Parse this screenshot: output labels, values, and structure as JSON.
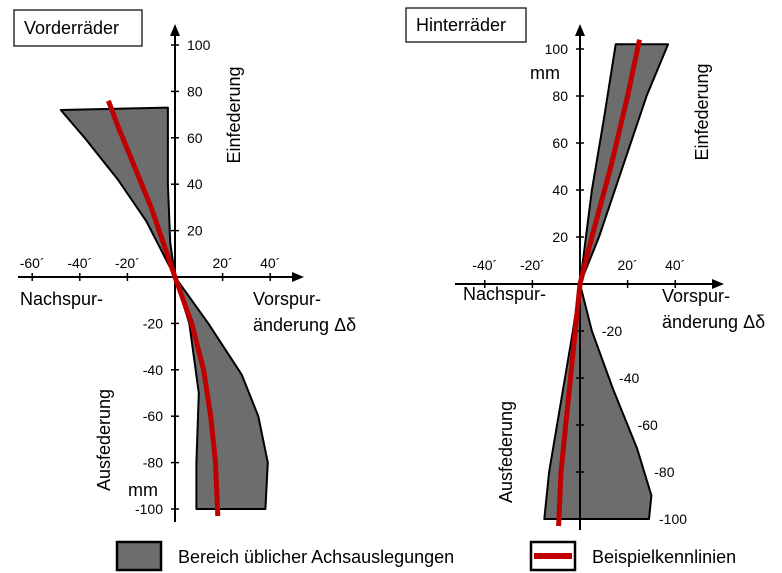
{
  "chart_data": [
    {
      "type": "area",
      "title": "Vorderräder",
      "x_axis": {
        "label_left": "Nachspur-",
        "label_right_line1": "Vorspur-",
        "label_right_line2": "änderung Δδ",
        "ticks": [
          "-60´",
          "-40´",
          "-20´",
          "20´",
          "40´"
        ],
        "tick_values": [
          -60,
          -40,
          -20,
          20,
          40
        ]
      },
      "y_axis": {
        "label_top": "Einfederung",
        "label_bottom": "Ausfederung",
        "unit": "mm",
        "ticks": [
          "100",
          "80",
          "60",
          "40",
          "20",
          "-20",
          "-40",
          "-60",
          "-80",
          "-100"
        ],
        "tick_values": [
          100,
          80,
          60,
          40,
          20,
          -20,
          -40,
          -60,
          -80,
          -100
        ]
      },
      "band": {
        "name": "Bereich üblicher Achsauslegungen",
        "left_edge": [
          [
            -48,
            72
          ],
          [
            -38,
            60
          ],
          [
            -24,
            42
          ],
          [
            -12,
            24
          ],
          [
            0,
            0
          ],
          [
            6,
            -20
          ],
          [
            10,
            -50
          ],
          [
            9,
            -80
          ],
          [
            9,
            -100
          ]
        ],
        "right_edge": [
          [
            -3,
            73
          ],
          [
            -3,
            40
          ],
          [
            -2,
            15
          ],
          [
            0,
            0
          ],
          [
            14,
            -20
          ],
          [
            28,
            -42
          ],
          [
            35,
            -60
          ],
          [
            39,
            -80
          ],
          [
            38,
            -100
          ]
        ]
      },
      "series": [
        {
          "name": "Beispielkennlinien",
          "points": [
            [
              -28,
              76
            ],
            [
              -24,
              65
            ],
            [
              -18,
              50
            ],
            [
              -10,
              30
            ],
            [
              0,
              0
            ],
            [
              7,
              -20
            ],
            [
              12,
              -40
            ],
            [
              15,
              -60
            ],
            [
              17,
              -80
            ],
            [
              18,
              -103
            ]
          ]
        }
      ]
    },
    {
      "type": "area",
      "title": "Hinterräder",
      "x_axis": {
        "label_left": "Nachspur-",
        "label_right_line1": "Vorspur-",
        "label_right_line2": "änderung Δδ",
        "ticks": [
          "-40´",
          "-20´",
          "20´",
          "40´"
        ],
        "tick_values": [
          -40,
          -20,
          20,
          40
        ]
      },
      "y_axis": {
        "label_top": "Einfederung",
        "label_bottom": "Ausfederung",
        "unit": "mm",
        "ticks_top": [
          "100",
          "80",
          "60",
          "40",
          "20"
        ],
        "tick_values_top": [
          100,
          80,
          60,
          40,
          20
        ],
        "ticks_bottom": [
          "-20",
          "-40",
          "-60",
          "-80",
          "-100"
        ],
        "tick_values_bottom": [
          -20,
          -40,
          -60,
          -80,
          -100
        ]
      },
      "band": {
        "name": "Bereich üblicher Achsauslegungen",
        "left_edge": [
          [
            15,
            102
          ],
          [
            10,
            70
          ],
          [
            5,
            40
          ],
          [
            0,
            0
          ],
          [
            -3,
            -20
          ],
          [
            -8,
            -50
          ],
          [
            -13,
            -80
          ],
          [
            -15,
            -100
          ]
        ],
        "right_edge": [
          [
            37,
            102
          ],
          [
            28,
            80
          ],
          [
            18,
            50
          ],
          [
            8,
            20
          ],
          [
            0,
            0
          ],
          [
            5,
            -20
          ],
          [
            14,
            -45
          ],
          [
            24,
            -70
          ],
          [
            30,
            -90
          ],
          [
            29,
            -100
          ]
        ]
      },
      "series": [
        {
          "name": "Beispielkennlinien",
          "points": [
            [
              25,
              104
            ],
            [
              20,
              80
            ],
            [
              13,
              50
            ],
            [
              5,
              20
            ],
            [
              0,
              0
            ],
            [
              -2,
              -20
            ],
            [
              -4,
              -40
            ],
            [
              -6,
              -60
            ],
            [
              -8,
              -80
            ],
            [
              -9,
              -103
            ]
          ]
        }
      ]
    }
  ],
  "legend": {
    "band_label": "Bereich üblicher Achsauslegungen",
    "line_label": "Beispielkennlinien",
    "band_color": "#6d6d6d",
    "line_color": "#c00000"
  }
}
